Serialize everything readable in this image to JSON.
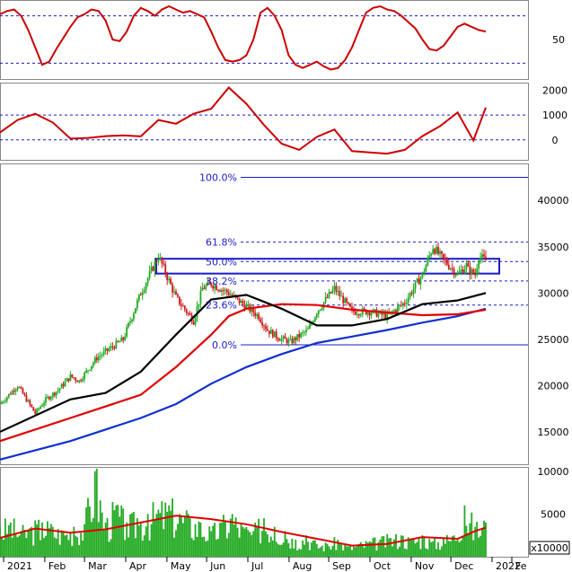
{
  "colors": {
    "price_up": "#22aa22",
    "price_down": "#d01818",
    "ma_black": "#000000",
    "ma_red": "#e00000",
    "ma_blue": "#1030d0",
    "osc_line": "#cc0000",
    "fib_text": "#1a1acc",
    "volume_bar": "#22aa22",
    "volume_ma": "#e00000",
    "box": "#1a1acc"
  },
  "chart_data": [
    {
      "type": "line",
      "panel": "stochastic",
      "yaxis_labels": [
        "50"
      ],
      "y_ticks": [
        50
      ],
      "ylim": [
        0,
        100
      ],
      "reference_levels": [
        80,
        20
      ],
      "series": [
        {
          "x": [
            0,
            4,
            8,
            12,
            16,
            20,
            24,
            28,
            32,
            36,
            40,
            44,
            48,
            52,
            56,
            60,
            64,
            68,
            72,
            76,
            80,
            84,
            88,
            92,
            96,
            100,
            104,
            108,
            112,
            116,
            120,
            124,
            128,
            132,
            136,
            140,
            144,
            148,
            152,
            156,
            160,
            164,
            168,
            172,
            176,
            180,
            184,
            188,
            192,
            196,
            200,
            204,
            208,
            212,
            216,
            220,
            224,
            228,
            232,
            236,
            240,
            244,
            248,
            252,
            256,
            260,
            264,
            268,
            272,
            276
          ],
          "values": [
            82,
            86,
            88,
            80,
            62,
            40,
            18,
            22,
            38,
            52,
            66,
            78,
            82,
            88,
            86,
            74,
            50,
            48,
            60,
            80,
            90,
            86,
            80,
            88,
            92,
            88,
            84,
            86,
            82,
            78,
            60,
            40,
            24,
            22,
            24,
            30,
            50,
            84,
            90,
            80,
            62,
            30,
            18,
            14,
            18,
            22,
            16,
            12,
            14,
            24,
            40,
            62,
            84,
            90,
            92,
            88,
            86,
            80,
            72,
            64,
            50,
            38,
            36,
            42,
            54,
            66,
            70,
            66,
            62,
            60
          ]
        }
      ]
    },
    {
      "type": "line",
      "panel": "momentum",
      "yaxis_labels": [
        "2000",
        "1000",
        "0"
      ],
      "y_ticks": [
        2000,
        1000,
        0
      ],
      "ylim": [
        -800,
        2300
      ],
      "reference_levels": [
        1000,
        0
      ],
      "series": [
        {
          "x": [
            0,
            10,
            20,
            30,
            40,
            50,
            60,
            70,
            80,
            90,
            100,
            110,
            120,
            130,
            140,
            150,
            160,
            170,
            180,
            190,
            200,
            210,
            220,
            230,
            240,
            250,
            260,
            269,
            276
          ],
          "values": [
            300,
            800,
            1050,
            700,
            50,
            80,
            150,
            180,
            140,
            800,
            650,
            1050,
            1250,
            2100,
            1450,
            600,
            -150,
            -400,
            120,
            420,
            -450,
            -500,
            -550,
            -400,
            150,
            550,
            1100,
            -20,
            1300
          ]
        }
      ]
    },
    {
      "type": "candlestick",
      "panel": "price",
      "x_tick_labels": [
        "2021",
        "Feb",
        "Mar",
        "Apr",
        "May",
        "Jun",
        "Jul",
        "Aug",
        "Sep",
        "Oct",
        "Nov",
        "Dec",
        "2022",
        "Fe"
      ],
      "yaxis_labels": [
        "40000",
        "35000",
        "30000",
        "25000",
        "20000",
        "15000"
      ],
      "y_ticks": [
        40000,
        35000,
        30000,
        25000,
        20000,
        15000
      ],
      "ylim": [
        11500,
        44000
      ],
      "fibonacci_labels": [
        "100.0%",
        "61.8%",
        "50.0%",
        "38.2%",
        "23.6%",
        "0.0%"
      ],
      "fibonacci_values": [
        42500,
        35500,
        33400,
        31300,
        28700,
        24400
      ],
      "box": {
        "low": 32100,
        "high": 33700
      },
      "series": [
        {
          "name": "close",
          "x": [
            0,
            10,
            20,
            26,
            33,
            40,
            45,
            55,
            70,
            80,
            90,
            100,
            110,
            115,
            120,
            125,
            130,
            140,
            147,
            152,
            158,
            165,
            175,
            180,
            190,
            200,
            210,
            220,
            230,
            240,
            246,
            250,
            260,
            265,
            266,
            270,
            272,
            276
          ],
          "values": [
            18000,
            20000,
            17000,
            18500,
            19500,
            21000,
            20500,
            23000,
            25000,
            30000,
            34000,
            29500,
            27000,
            30500,
            31000,
            30500,
            30000,
            28500,
            27500,
            26000,
            25200,
            24700,
            26000,
            28000,
            30500,
            28000,
            28000,
            27500,
            29000,
            32000,
            35000,
            34000,
            32000,
            33000,
            32500,
            32000,
            34000,
            33500
          ]
        },
        {
          "name": "ma_black",
          "x": [
            0,
            40,
            60,
            80,
            100,
            120,
            140,
            160,
            180,
            200,
            220,
            240,
            260,
            276
          ],
          "values": [
            15000,
            18500,
            19200,
            21500,
            25500,
            29300,
            29800,
            28300,
            26500,
            26500,
            27200,
            28800,
            29200,
            30000
          ]
        },
        {
          "name": "ma_red",
          "x": [
            0,
            40,
            80,
            100,
            120,
            130,
            140,
            160,
            180,
            200,
            220,
            240,
            260,
            276
          ],
          "values": [
            14000,
            16500,
            19000,
            22000,
            25500,
            27500,
            28300,
            28800,
            28700,
            28200,
            27900,
            27600,
            27700,
            28200
          ]
        },
        {
          "name": "ma_blue",
          "x": [
            0,
            40,
            80,
            100,
            120,
            140,
            160,
            180,
            200,
            220,
            240,
            260,
            276
          ],
          "values": [
            12000,
            14000,
            16500,
            18000,
            20200,
            22000,
            23400,
            24600,
            25300,
            26000,
            26800,
            27500,
            28300
          ]
        }
      ]
    },
    {
      "type": "bar",
      "panel": "volume",
      "unit_label": "x10000",
      "yaxis_labels": [
        "10000",
        "5000"
      ],
      "y_ticks": [
        10000,
        5000
      ],
      "ylim": [
        0,
        10500
      ],
      "series": [
        {
          "name": "volume",
          "x": [
            0,
            6,
            12,
            18,
            24,
            30,
            36,
            42,
            48,
            54,
            60,
            66,
            72,
            78,
            84,
            90,
            96,
            102,
            108,
            114,
            120,
            126,
            132,
            138,
            144,
            150,
            156,
            162,
            168,
            174,
            180,
            186,
            192,
            198,
            204,
            210,
            216,
            222,
            228,
            234,
            240,
            246,
            252,
            258,
            264,
            270,
            276
          ],
          "values": [
            3500,
            4000,
            3000,
            3500,
            4000,
            3500,
            3000,
            3500,
            3800,
            10000,
            4000,
            6000,
            4000,
            4500,
            5000,
            5500,
            6000,
            5000,
            4500,
            4000,
            3000,
            4000,
            5000,
            3500,
            3000,
            4500,
            3500,
            3000,
            2000,
            2500,
            1500,
            1500,
            2000,
            1200,
            1500,
            1800,
            2000,
            2200,
            2500,
            2000,
            2500,
            1800,
            2200,
            2500,
            6000,
            3500,
            4000
          ]
        },
        {
          "name": "volume_ma",
          "x": [
            0,
            20,
            40,
            60,
            80,
            100,
            120,
            140,
            160,
            180,
            200,
            220,
            240,
            260,
            270,
            276
          ],
          "values": [
            2200,
            3300,
            2800,
            3200,
            4000,
            4800,
            4400,
            3800,
            2900,
            2100,
            1300,
            1500,
            2300,
            2100,
            3000,
            3400
          ]
        }
      ]
    }
  ]
}
